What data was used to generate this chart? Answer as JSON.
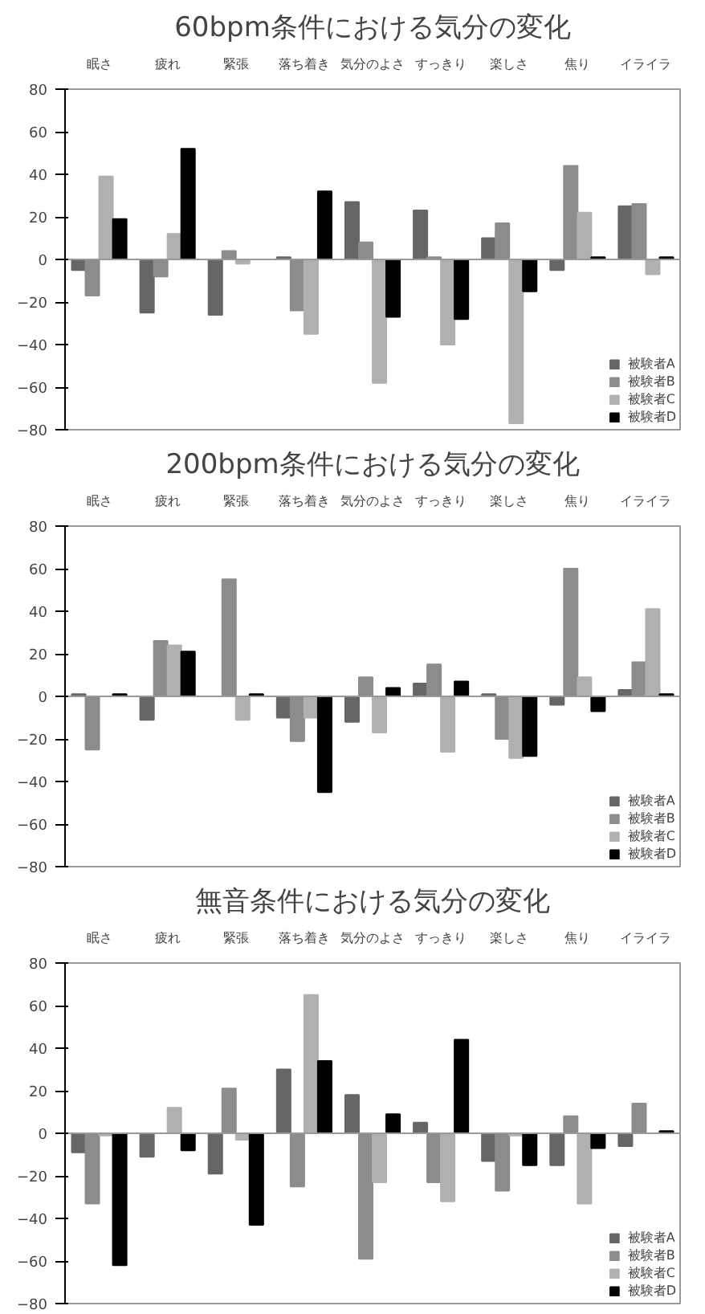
{
  "chart_data": [
    {
      "type": "bar",
      "title": "60bpm条件における気分の変化",
      "categories": [
        "眠さ",
        "疲れ",
        "緊張",
        "落ち着き",
        "気分のよさ",
        "すっきり",
        "楽しさ",
        "焦り",
        "イライラ"
      ],
      "ylim": [
        -80,
        80
      ],
      "yticks": [
        -80,
        -60,
        -40,
        -20,
        0,
        20,
        40,
        60,
        80
      ],
      "legend": "bottom right",
      "series": [
        {
          "name": "被験者A",
          "color": "#666666",
          "values": [
            -5,
            -25,
            -26,
            1,
            27,
            23,
            10,
            -5,
            25
          ]
        },
        {
          "name": "被験者B",
          "color": "#8c8c8c",
          "values": [
            -17,
            -8,
            4,
            -24,
            8,
            1,
            17,
            44,
            26
          ]
        },
        {
          "name": "被験者C",
          "color": "#b0b0b0",
          "values": [
            39,
            12,
            -2,
            -35,
            -58,
            -40,
            -77,
            22,
            -7
          ]
        },
        {
          "name": "被験者D",
          "color": "#000000",
          "values": [
            19,
            52,
            null,
            32,
            -27,
            -28,
            -15,
            1,
            1
          ]
        }
      ]
    },
    {
      "type": "bar",
      "title": "200bpm条件における気分の変化",
      "categories": [
        "眠さ",
        "疲れ",
        "緊張",
        "落ち着き",
        "気分のよさ",
        "すっきり",
        "楽しさ",
        "焦り",
        "イライラ"
      ],
      "ylim": [
        -80,
        80
      ],
      "yticks": [
        -80,
        -60,
        -40,
        -20,
        0,
        20,
        40,
        60,
        80
      ],
      "legend": "bottom right",
      "series": [
        {
          "name": "被験者A",
          "color": "#666666",
          "values": [
            1,
            -11,
            null,
            -10,
            -12,
            6,
            1,
            -4,
            3
          ]
        },
        {
          "name": "被験者B",
          "color": "#8c8c8c",
          "values": [
            -25,
            26,
            55,
            -21,
            9,
            15,
            -20,
            60,
            16
          ]
        },
        {
          "name": "被験者C",
          "color": "#b0b0b0",
          "values": [
            null,
            24,
            -11,
            -10,
            -17,
            -26,
            -29,
            9,
            41
          ]
        },
        {
          "name": "被験者D",
          "color": "#000000",
          "values": [
            1,
            21,
            1,
            -45,
            4,
            7,
            -28,
            -7,
            1
          ]
        }
      ]
    },
    {
      "type": "bar",
      "title": "無音条件における気分の変化",
      "categories": [
        "眠さ",
        "疲れ",
        "緊張",
        "落ち着き",
        "気分のよさ",
        "すっきり",
        "楽しさ",
        "焦り",
        "イライラ"
      ],
      "ylim": [
        -80,
        80
      ],
      "yticks": [
        -80,
        -60,
        -40,
        -20,
        0,
        20,
        40,
        60,
        80
      ],
      "legend": "bottom right",
      "series": [
        {
          "name": "被験者A",
          "color": "#666666",
          "values": [
            -9,
            -11,
            -19,
            30,
            18,
            5,
            -13,
            -15,
            -6
          ]
        },
        {
          "name": "被験者B",
          "color": "#8c8c8c",
          "values": [
            -33,
            null,
            21,
            -25,
            -59,
            -23,
            -27,
            8,
            14
          ]
        },
        {
          "name": "被験者C",
          "color": "#b0b0b0",
          "values": [
            -1,
            12,
            -3,
            65,
            -23,
            -32,
            -1,
            -33,
            null
          ]
        },
        {
          "name": "被験者D",
          "color": "#000000",
          "values": [
            -62,
            -8,
            -43,
            34,
            9,
            44,
            -15,
            -7,
            1
          ]
        }
      ]
    }
  ]
}
